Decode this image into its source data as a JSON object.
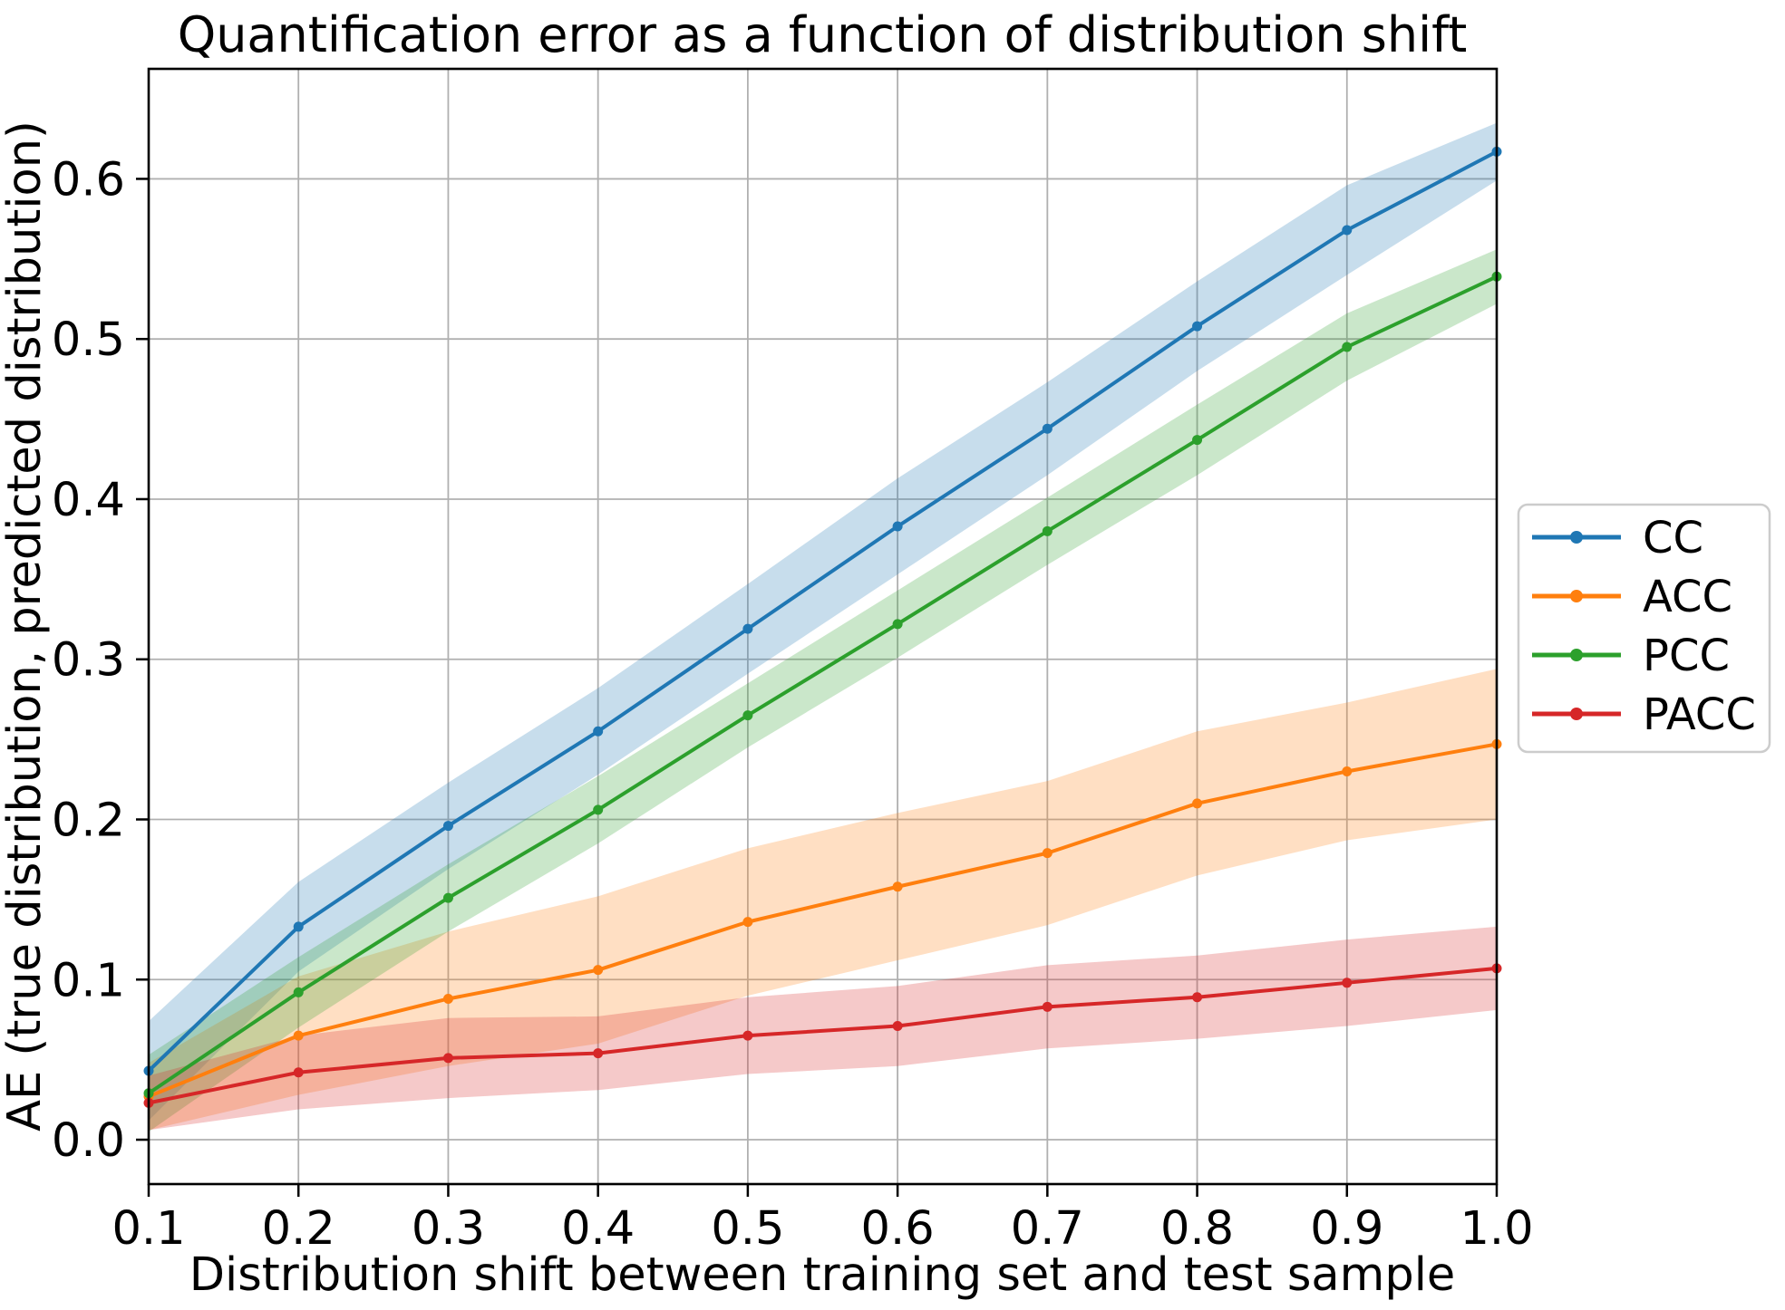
{
  "figure": {
    "background": "#ffffff"
  },
  "chart_data": {
    "type": "line",
    "title": "Quantification error as a function of distribution shift",
    "xlabel": "Distribution shift between training set and test sample",
    "ylabel": "AE (true distribution, predicted distribution)",
    "x": [
      0.1,
      0.2,
      0.3,
      0.4,
      0.5,
      0.6,
      0.7,
      0.8,
      0.9,
      1.0
    ],
    "series": [
      {
        "name": "CC",
        "color": "#1f77b4",
        "values": [
          0.043,
          0.133,
          0.196,
          0.255,
          0.319,
          0.383,
          0.444,
          0.508,
          0.568,
          0.617
        ],
        "band_halfwidth": [
          0.031,
          0.028,
          0.027,
          0.027,
          0.028,
          0.03,
          0.029,
          0.028,
          0.028,
          0.018
        ]
      },
      {
        "name": "ACC",
        "color": "#ff7f0e",
        "values": [
          0.027,
          0.065,
          0.088,
          0.106,
          0.136,
          0.158,
          0.179,
          0.21,
          0.23,
          0.247
        ],
        "band_halfwidth": [
          0.021,
          0.037,
          0.042,
          0.046,
          0.046,
          0.046,
          0.045,
          0.045,
          0.043,
          0.047
        ]
      },
      {
        "name": "PCC",
        "color": "#2ca02c",
        "values": [
          0.029,
          0.092,
          0.151,
          0.206,
          0.265,
          0.322,
          0.38,
          0.437,
          0.495,
          0.539
        ],
        "band_halfwidth": [
          0.024,
          0.022,
          0.021,
          0.021,
          0.02,
          0.021,
          0.021,
          0.022,
          0.021,
          0.017
        ]
      },
      {
        "name": "PACC",
        "color": "#d62728",
        "values": [
          0.023,
          0.042,
          0.051,
          0.054,
          0.065,
          0.071,
          0.083,
          0.089,
          0.098,
          0.107
        ],
        "band_halfwidth": [
          0.017,
          0.023,
          0.025,
          0.023,
          0.024,
          0.025,
          0.026,
          0.026,
          0.027,
          0.026
        ]
      }
    ],
    "xlim": [
      0.1,
      1.0
    ],
    "ylim": [
      -0.0277,
      0.6687
    ],
    "xticks": [
      0.1,
      0.2,
      0.3,
      0.4,
      0.5,
      0.6,
      0.7,
      0.8,
      0.9,
      1.0
    ],
    "yticks": [
      0.0,
      0.1,
      0.2,
      0.3,
      0.4,
      0.5,
      0.6
    ],
    "tick_format_decimals": 1,
    "grid": true,
    "grid_color": "#b0b0b0",
    "axis_color": "#000000",
    "band_opacity": 0.25,
    "legend": {
      "position": "center right outside",
      "entries": [
        "CC",
        "ACC",
        "PCC",
        "PACC"
      ],
      "border_color": "#cccccc",
      "background": "#ffffff"
    }
  }
}
